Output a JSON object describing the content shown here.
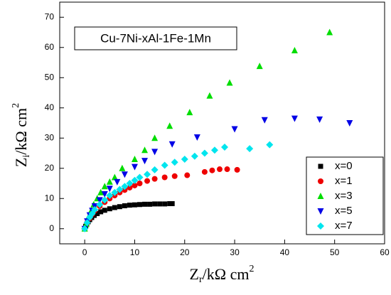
{
  "chart_data": {
    "type": "scatter",
    "title": "Cu-7Ni-xAl-1Fe-1Mn",
    "x_label": {
      "main": "Z",
      "sub": "r",
      "unit": "/kΩ  cm",
      "sup": "2"
    },
    "y_label": {
      "main": "Z",
      "sub": "i",
      "unit": "/kΩ  cm",
      "sup": "2"
    },
    "xlim": [
      -5,
      60
    ],
    "ylim": [
      -5,
      75
    ],
    "xticks": [
      0,
      10,
      20,
      30,
      40,
      50,
      60
    ],
    "yticks": [
      0,
      10,
      20,
      30,
      40,
      50,
      60,
      70
    ],
    "legend": "lower-right",
    "series": [
      {
        "name": "x=0",
        "color": "#000000",
        "marker": "square",
        "x": [
          0,
          0.2,
          0.4,
          0.7,
          1,
          1.4,
          1.9,
          2.5,
          3.2,
          4,
          5,
          6,
          7,
          8,
          9,
          10,
          11,
          12,
          13,
          14,
          15,
          16,
          17,
          17.5
        ],
        "values": [
          0,
          0.8,
          1.5,
          2.3,
          3,
          3.7,
          4.4,
          5,
          5.6,
          6.1,
          6.6,
          7,
          7.3,
          7.6,
          7.8,
          7.9,
          8,
          8.1,
          8.1,
          8.2,
          8.2,
          8.2,
          8.3,
          8.3
        ]
      },
      {
        "name": "x=1",
        "color": "#ee0000",
        "marker": "circle",
        "x": [
          0,
          0.5,
          1,
          1.5,
          2,
          3,
          4,
          5,
          6,
          7,
          8,
          9,
          10,
          11,
          12.5,
          14,
          16,
          18,
          20.5,
          24,
          25.5,
          27,
          28.5,
          30.5
        ],
        "values": [
          0,
          2,
          3.5,
          4.8,
          6,
          7.5,
          8.8,
          10,
          11,
          12,
          12.8,
          13.6,
          14.3,
          15,
          15.8,
          16.5,
          17,
          17.4,
          17.7,
          18.8,
          19.3,
          19.7,
          19.7,
          19.5
        ]
      },
      {
        "name": "x=3",
        "color": "#00dd00",
        "marker": "triangle-up",
        "x": [
          0,
          0.3,
          0.8,
          1.3,
          1.8,
          2.5,
          3.2,
          4,
          5,
          6,
          7.5,
          10,
          12,
          14,
          17,
          21,
          25,
          29,
          35,
          42,
          49
        ],
        "values": [
          0,
          1.5,
          4,
          6,
          8,
          10,
          12,
          14,
          15.5,
          17,
          20,
          23,
          26,
          30,
          34,
          38.5,
          44,
          48.3,
          53.8,
          59,
          65
        ]
      },
      {
        "name": "x=5",
        "color": "#0000e6",
        "marker": "triangle-down",
        "x": [
          0,
          0.5,
          1,
          1.5,
          2,
          3,
          4,
          5,
          6.5,
          8,
          10,
          12,
          14,
          17.5,
          22.5,
          30,
          36,
          42,
          47,
          53
        ],
        "values": [
          0,
          2.5,
          4.5,
          6,
          7.5,
          9.5,
          11.5,
          13.3,
          15.5,
          18,
          20.5,
          22.5,
          25.5,
          28,
          30.3,
          33,
          36,
          36.5,
          36.2,
          35
        ]
      },
      {
        "name": "x=7",
        "color": "#00e5ee",
        "marker": "diamond",
        "x": [
          0,
          0.5,
          1,
          1.5,
          2,
          3,
          4,
          5,
          6,
          7,
          8,
          9,
          10,
          11,
          12.5,
          14,
          16,
          18,
          20,
          22,
          24,
          26,
          28,
          33,
          37
        ],
        "values": [
          0,
          2,
          3.8,
          5,
          6.3,
          8,
          9.5,
          11,
          12,
          13,
          14,
          15,
          16,
          17,
          18,
          19.5,
          21,
          22,
          23,
          24,
          25,
          26,
          27,
          26.5,
          27.8
        ]
      }
    ]
  }
}
